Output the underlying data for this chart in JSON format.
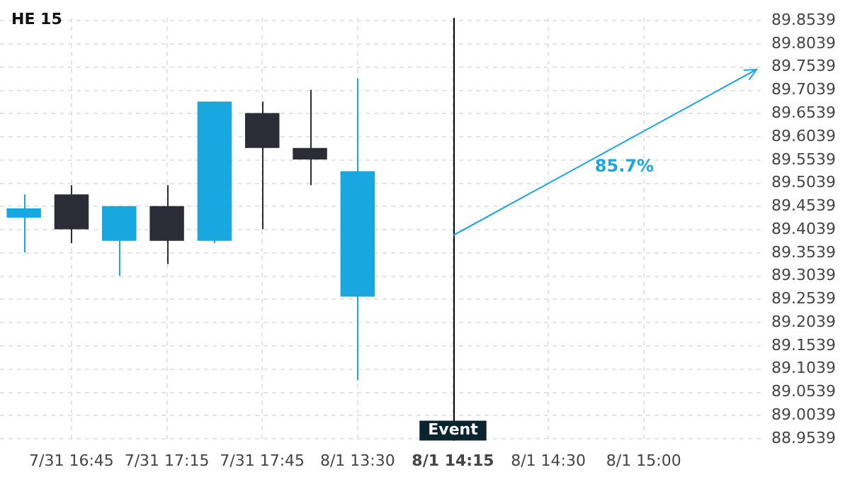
{
  "chart_data": {
    "type": "candlestick",
    "title": "HE 15",
    "categories": [
      null,
      "7/31 16:45",
      null,
      "7/31 17:15",
      null,
      "7/31 17:45",
      null,
      "8/1 13:30",
      null,
      "8/1 14:15",
      null,
      "8/1 14:30",
      null,
      "8/1 15:00",
      null,
      null
    ],
    "ohlc": [
      [
        89.43,
        89.48,
        89.355,
        89.45
      ],
      [
        89.48,
        89.5,
        89.375,
        89.405
      ],
      [
        89.38,
        89.455,
        89.305,
        89.455
      ],
      [
        89.455,
        89.5,
        89.33,
        89.38
      ],
      [
        89.38,
        89.68,
        89.375,
        89.68
      ],
      [
        89.655,
        89.68,
        89.405,
        89.58
      ],
      [
        89.58,
        89.705,
        89.5,
        89.555
      ],
      [
        89.26,
        89.73,
        89.08,
        89.53
      ],
      null,
      null,
      null,
      null,
      null,
      null,
      null,
      null
    ],
    "colors": [
      "#19a7e0",
      "#2b2c36",
      "#19a7e0",
      "#2b2c36",
      "#19a7e0",
      "#2b2c36",
      "#2b2c36",
      "#19a7e0",
      null,
      null,
      null,
      null,
      null,
      null,
      null,
      null
    ],
    "ref_lines": [
      {
        "axis": "x",
        "value": "8/1 14:15",
        "label": "Event",
        "color": "#000000"
      }
    ],
    "annotations": [
      "85.7%"
    ],
    "ylim": [
      88.95,
      89.86
    ],
    "yticks": [
      89.8539,
      89.8039,
      89.7539,
      89.7039,
      89.6539,
      89.6039,
      89.5539,
      89.5039,
      89.4539,
      89.4039,
      89.3539,
      89.3039,
      89.2539,
      89.2039,
      89.1539,
      89.1039,
      89.0539,
      89.0039,
      88.9539
    ],
    "grid": true,
    "legend": false
  }
}
